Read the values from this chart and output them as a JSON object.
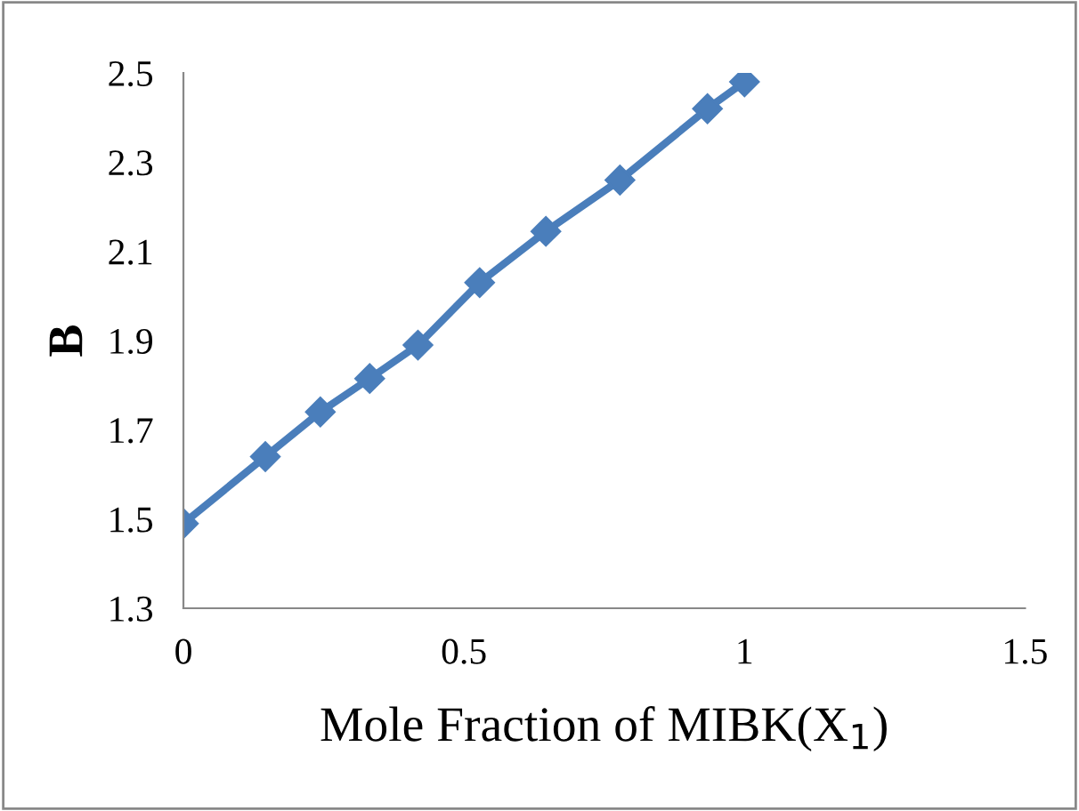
{
  "chart_data": {
    "type": "line",
    "xlabel": "Mole Fraction of MIBK(X$_{1}$)",
    "ylabel": "B",
    "x": [
      0,
      0.146,
      0.244,
      0.332,
      0.418,
      0.528,
      0.646,
      0.778,
      0.934,
      1.0
    ],
    "series": [
      {
        "color": "#4a7ebb",
        "values": [
          1.49,
          1.64,
          1.74,
          1.815,
          1.89,
          2.03,
          2.145,
          2.26,
          2.42,
          2.48
        ]
      }
    ],
    "marker": "diamond",
    "line_style": "solid",
    "grid": false,
    "legend": false,
    "xlim": [
      0,
      1.5
    ],
    "xticks": [
      0,
      0.5,
      1,
      1.5
    ],
    "ylim": [
      1.3,
      2.5
    ],
    "yticks": [
      1.3,
      1.5,
      1.7,
      1.9,
      2.1,
      2.3,
      2.5
    ]
  }
}
